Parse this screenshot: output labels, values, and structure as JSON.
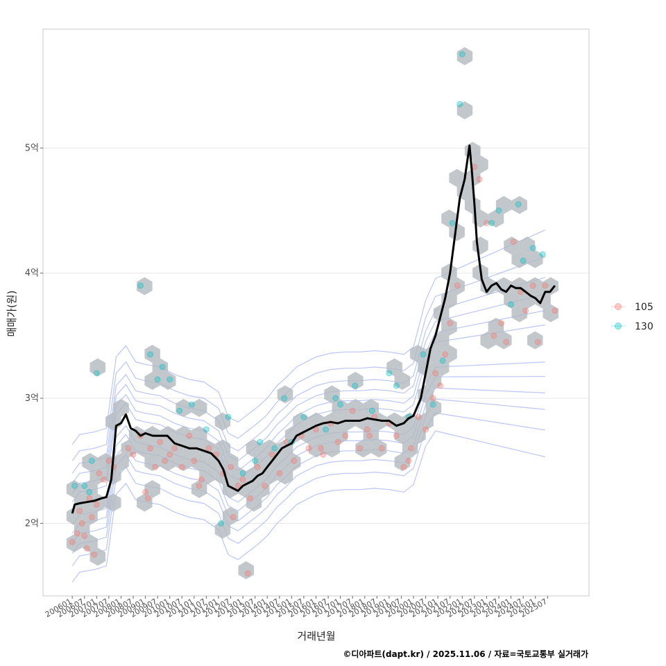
{
  "chart_data": {
    "type": "scatter",
    "xlabel": "거래년월",
    "ylabel": "매매가(원)",
    "caption": "©디아파트(dapt.kr) / 2025.11.06 / 자료=국토교통부 실거래가",
    "ylim": [
      1.42,
      5.95
    ],
    "xlim": [
      2004.8,
      2027.2
    ],
    "grid": true,
    "y_ticks": [
      {
        "value": 2,
        "label": "2억"
      },
      {
        "value": 3,
        "label": "3억"
      },
      {
        "value": 4,
        "label": "4억"
      },
      {
        "value": 5,
        "label": "5억"
      }
    ],
    "x_ticks": [
      "200601",
      "200607",
      "200701",
      "200707",
      "200801",
      "200807",
      "200901",
      "200907",
      "201001",
      "201007",
      "201101",
      "201107",
      "201201",
      "201207",
      "201301",
      "201307",
      "201401",
      "201407",
      "201501",
      "201507",
      "201601",
      "201607",
      "201701",
      "201707",
      "201801",
      "201807",
      "201901",
      "201907",
      "202001",
      "202007",
      "202101",
      "202107",
      "202201",
      "202207",
      "202301",
      "202307",
      "202401",
      "202407",
      "202501",
      "202507"
    ],
    "x_tick_start": 2006.0,
    "x_tick_step": 0.5,
    "legend": {
      "position": "right",
      "entries": [
        {
          "label": "105",
          "color": "#F8766D"
        },
        {
          "label": "130",
          "color": "#00BFC4"
        }
      ]
    },
    "colors": {
      "hex": "#b3b9bf",
      "trend": "#000000",
      "contour": "#8a9ff0",
      "grid": "#e6e6e6",
      "panel_border": "#c8c8c8"
    },
    "trend_line": {
      "name": "median",
      "x": [
        2006.0,
        2006.1,
        2006.3,
        2006.6,
        2006.9,
        2007.2,
        2007.4,
        2007.6,
        2007.8,
        2008.0,
        2008.2,
        2008.4,
        2008.6,
        2008.8,
        2009.0,
        2009.3,
        2009.6,
        2009.9,
        2010.2,
        2010.5,
        2010.8,
        2011.1,
        2011.4,
        2011.7,
        2012.0,
        2012.2,
        2012.4,
        2012.6,
        2012.8,
        2013.0,
        2013.2,
        2013.4,
        2013.6,
        2013.8,
        2014.0,
        2014.2,
        2014.4,
        2014.6,
        2014.8,
        2015.0,
        2015.2,
        2015.4,
        2015.6,
        2015.8,
        2016.0,
        2016.3,
        2016.6,
        2016.9,
        2017.2,
        2017.5,
        2017.8,
        2018.1,
        2018.4,
        2018.7,
        2019.0,
        2019.3,
        2019.6,
        2019.8,
        2020.0,
        2020.3,
        2020.5,
        2020.7,
        2020.9,
        2021.1,
        2021.3,
        2021.5,
        2021.7,
        2021.9,
        2022.1,
        2022.3,
        2022.4,
        2022.5,
        2022.6,
        2022.8,
        2023.0,
        2023.2,
        2023.4,
        2023.6,
        2023.8,
        2024.0,
        2024.2,
        2024.4,
        2024.6,
        2024.8,
        2025.0,
        2025.2,
        2025.4,
        2025.6,
        2025.8
      ],
      "y": [
        2.08,
        2.15,
        2.16,
        2.17,
        2.18,
        2.2,
        2.21,
        2.35,
        2.78,
        2.8,
        2.87,
        2.76,
        2.74,
        2.7,
        2.72,
        2.7,
        2.7,
        2.7,
        2.64,
        2.62,
        2.6,
        2.6,
        2.58,
        2.56,
        2.5,
        2.43,
        2.3,
        2.28,
        2.26,
        2.3,
        2.32,
        2.34,
        2.38,
        2.4,
        2.45,
        2.5,
        2.55,
        2.6,
        2.62,
        2.64,
        2.7,
        2.72,
        2.74,
        2.76,
        2.78,
        2.8,
        2.81,
        2.8,
        2.82,
        2.82,
        2.82,
        2.84,
        2.83,
        2.82,
        2.82,
        2.78,
        2.8,
        2.84,
        2.86,
        3.0,
        3.2,
        3.4,
        3.5,
        3.65,
        3.8,
        4.0,
        4.3,
        4.6,
        4.75,
        5.02,
        4.8,
        4.55,
        4.25,
        3.95,
        3.85,
        3.9,
        3.92,
        3.87,
        3.85,
        3.9,
        3.88,
        3.88,
        3.85,
        3.82,
        3.8,
        3.76,
        3.85,
        3.85,
        3.9
      ]
    },
    "series": [
      {
        "name": "105",
        "color": "#F8766D",
        "x": [
          2006.0,
          2006.2,
          2006.4,
          2006.6,
          2006.8,
          2006.9,
          2007.0,
          2006.3,
          2006.5,
          2006.7,
          2007.3,
          2007.5,
          2007.7,
          2008.3,
          2008.5,
          2008.8,
          2009.0,
          2009.2,
          2009.4,
          2009.6,
          2009.8,
          2010.0,
          2010.2,
          2010.5,
          2010.8,
          2011.0,
          2011.3,
          2011.6,
          2011.9,
          2012.2,
          2012.5,
          2012.8,
          2013.0,
          2013.3,
          2013.6,
          2013.9,
          2014.2,
          2014.5,
          2014.8,
          2015.1,
          2015.4,
          2015.7,
          2016.0,
          2016.3,
          2016.6,
          2016.9,
          2017.2,
          2017.5,
          2017.8,
          2018.1,
          2018.4,
          2018.7,
          2019.0,
          2019.3,
          2019.6,
          2019.9,
          2020.2,
          2020.5,
          2020.8,
          2021.1,
          2021.3,
          2021.5,
          2021.8,
          2022.5,
          2022.7,
          2023.0,
          2023.3,
          2023.6,
          2023.8,
          2024.1,
          2024.4,
          2024.6,
          2024.9,
          2025.1,
          2025.4,
          2025.8,
          2013.2,
          2009.1,
          2012.6,
          2016.2,
          2018.2,
          2019.8,
          2020.9,
          2007.1,
          2011.2
        ],
        "y": [
          1.85,
          1.92,
          2.0,
          1.8,
          2.05,
          1.75,
          2.15,
          2.1,
          1.9,
          2.2,
          2.35,
          2.5,
          2.45,
          2.6,
          2.55,
          2.7,
          2.25,
          2.6,
          2.45,
          2.65,
          2.5,
          2.55,
          2.6,
          2.45,
          2.7,
          2.5,
          2.35,
          2.6,
          2.55,
          2.4,
          2.45,
          2.3,
          2.35,
          2.2,
          2.45,
          2.3,
          2.55,
          2.4,
          2.65,
          2.5,
          2.7,
          2.6,
          2.75,
          2.55,
          2.8,
          2.65,
          2.7,
          2.9,
          2.6,
          2.75,
          2.85,
          2.6,
          2.8,
          2.7,
          2.45,
          2.6,
          2.85,
          2.75,
          3.0,
          3.1,
          3.35,
          3.6,
          3.9,
          4.85,
          4.75,
          4.4,
          3.5,
          3.6,
          3.45,
          4.25,
          3.85,
          3.7,
          3.9,
          3.45,
          3.9,
          3.7,
          1.6,
          2.2,
          2.05,
          2.6,
          2.7,
          2.5,
          3.2,
          2.4,
          2.3
        ]
      },
      {
        "name": "130",
        "color": "#00BFC4",
        "x": [
          2006.1,
          2006.5,
          2006.8,
          2007.0,
          2008.8,
          2009.2,
          2009.5,
          2009.7,
          2010.0,
          2010.4,
          2010.9,
          2011.5,
          2012.4,
          2013.0,
          2013.5,
          2014.3,
          2015.0,
          2015.5,
          2016.4,
          2017.0,
          2017.6,
          2018.3,
          2019.0,
          2019.8,
          2020.4,
          2020.8,
          2021.6,
          2021.9,
          2022.0,
          2023.5,
          2024.0,
          2024.3,
          2024.5,
          2024.9,
          2012.1,
          2013.7,
          2014.7,
          2016.8,
          2019.3,
          2006.7,
          2021.2,
          2023.2,
          2025.3
        ],
        "y": [
          2.3,
          2.3,
          2.5,
          3.2,
          3.9,
          3.35,
          3.15,
          3.25,
          3.15,
          2.9,
          2.95,
          2.75,
          2.85,
          2.4,
          2.5,
          2.6,
          2.65,
          2.85,
          2.75,
          2.95,
          3.1,
          2.9,
          3.2,
          2.85,
          3.35,
          2.95,
          4.4,
          5.35,
          5.75,
          4.5,
          3.75,
          4.55,
          4.1,
          4.2,
          2.0,
          2.65,
          3.0,
          3.0,
          3.1,
          2.25,
          3.3,
          4.4,
          4.15
        ]
      }
    ]
  }
}
